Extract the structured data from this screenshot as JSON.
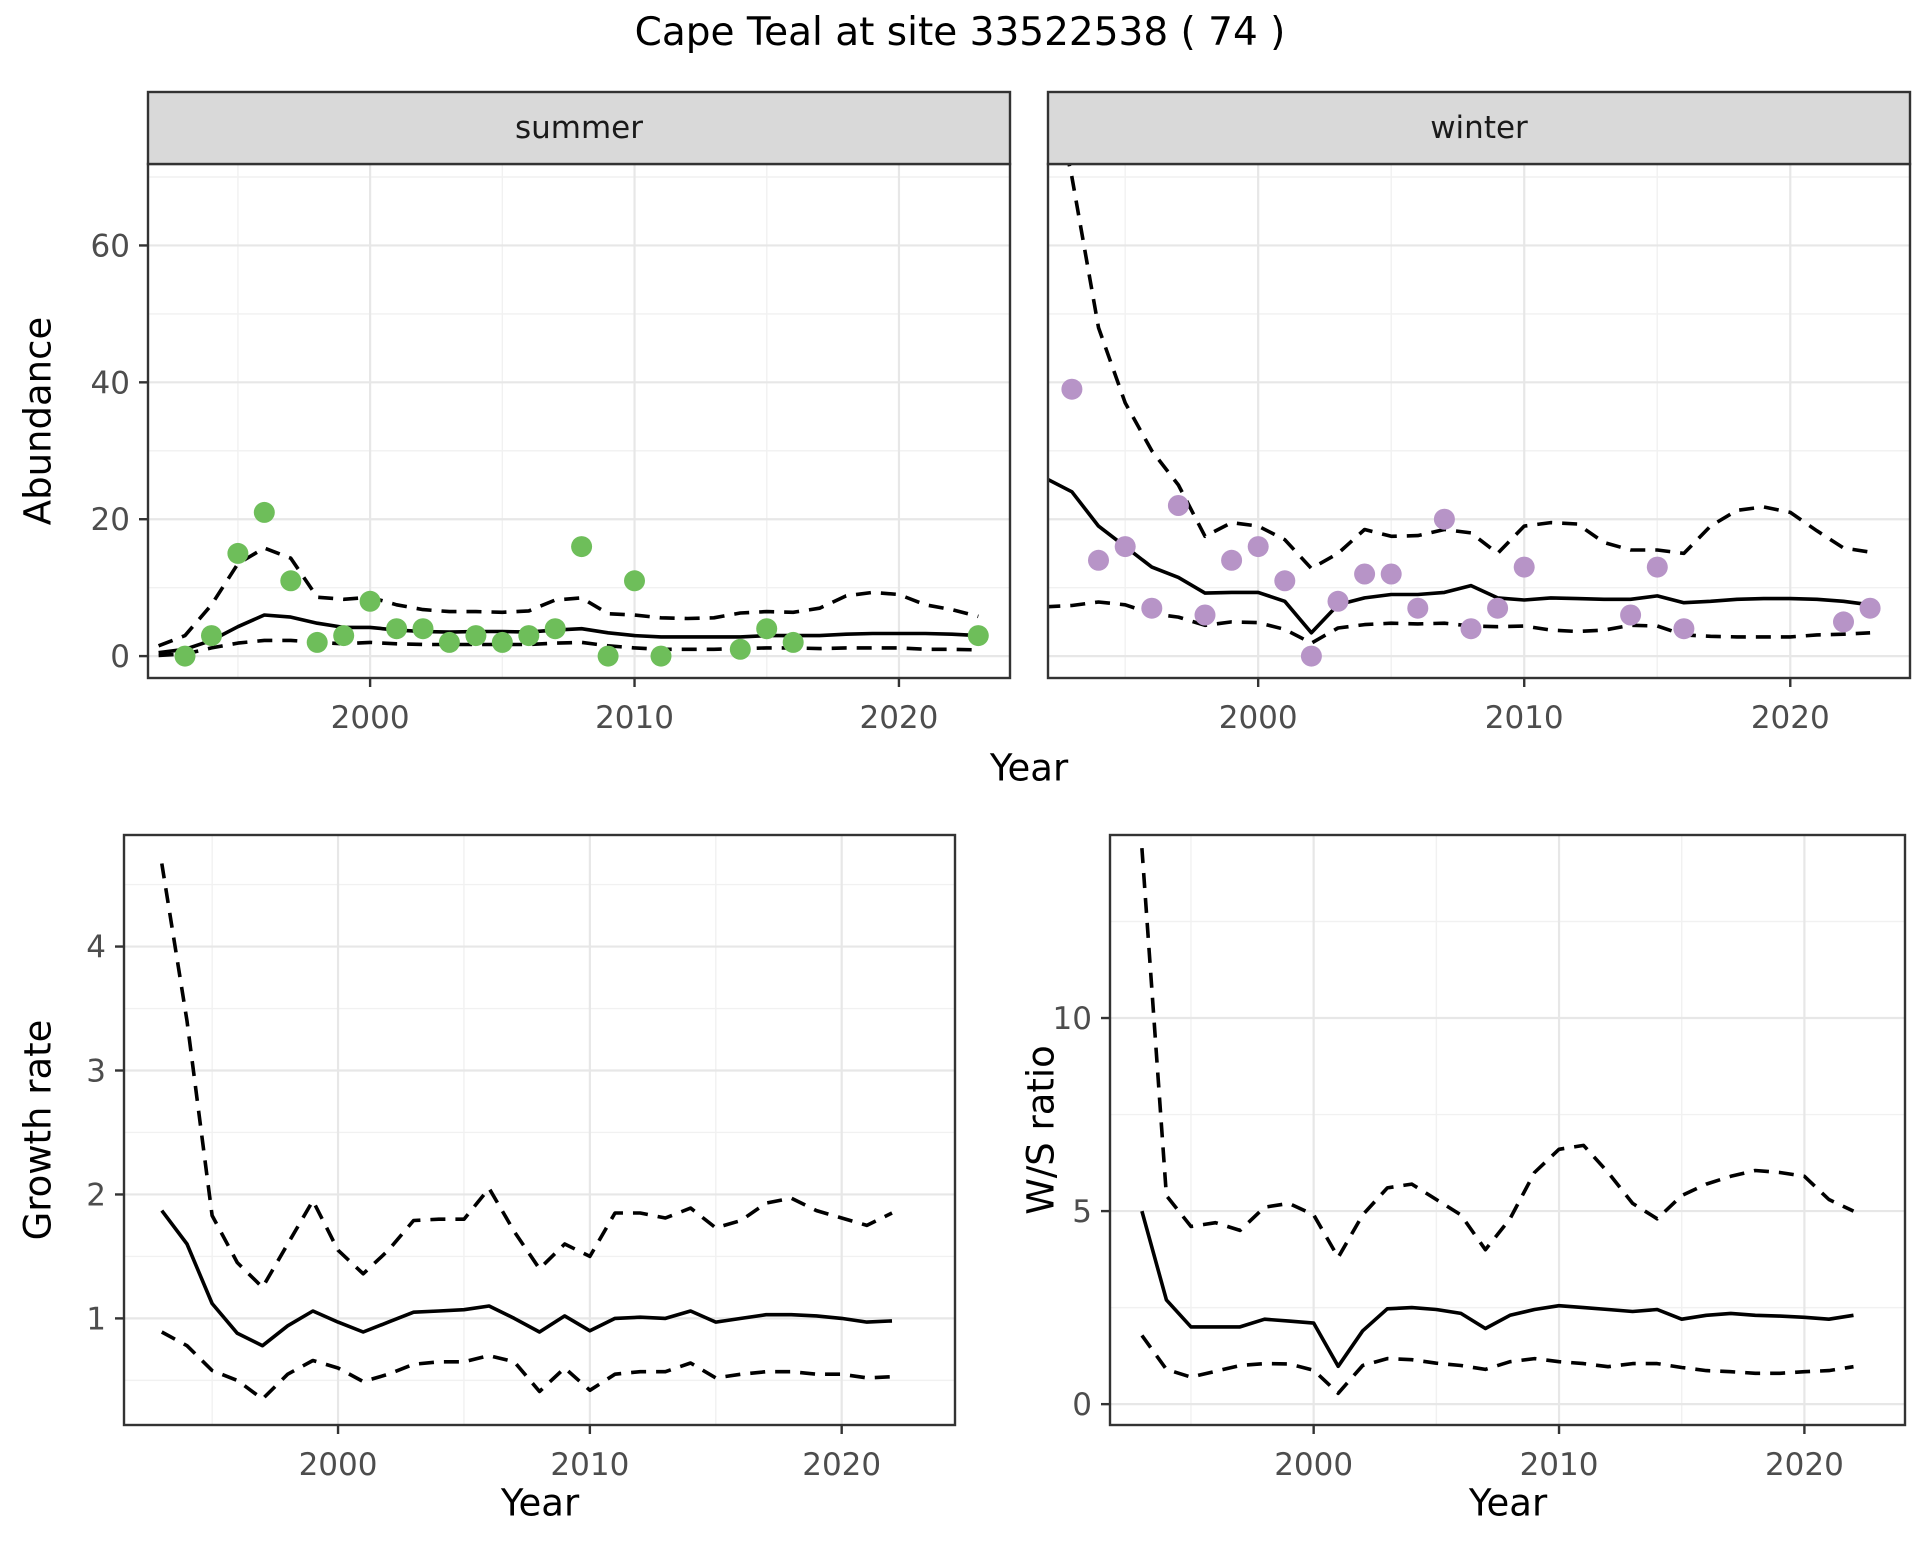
{
  "title": "Cape Teal at site 33522538 ( 74 )",
  "colors": {
    "summer_points": "#6ebe5a",
    "winter_points": "#b794c7",
    "line": "#000000",
    "grid_major": "#e7e7e7",
    "grid_minor": "#f1f1f1",
    "panel_border": "#333333",
    "strip_bg": "#d9d9d9",
    "tick_text": "#4d4d4d"
  },
  "axis_titles": {
    "abundance": "Abundance",
    "year_top": "Year",
    "growth_rate": "Growth rate",
    "year_bottom_left": "Year",
    "ws_ratio": "W/S ratio",
    "year_bottom_right": "Year"
  },
  "chart_data": [
    {
      "id": "abundance-summer",
      "type": "line",
      "facet_label": "summer",
      "xlabel": "Year",
      "ylabel": "Abundance",
      "xlim": [
        1991.6,
        2024.2
      ],
      "ylim": [
        -3.2,
        71.9
      ],
      "x_major": [
        2000,
        2010,
        2020
      ],
      "x_minor": [
        1995,
        2005,
        2015
      ],
      "y_major": [
        0,
        20,
        40,
        60
      ],
      "y_minor": [
        10,
        30,
        50,
        70
      ],
      "years": [
        1992,
        1993,
        1994,
        1995,
        1996,
        1997,
        1998,
        1999,
        2000,
        2001,
        2002,
        2003,
        2004,
        2005,
        2006,
        2007,
        2008,
        2009,
        2010,
        2011,
        2012,
        2013,
        2014,
        2015,
        2016,
        2017,
        2018,
        2019,
        2020,
        2021,
        2022,
        2023
      ],
      "series": [
        {
          "name": "fit",
          "dashed": false,
          "values": [
            0.5,
            1.0,
            2.3,
            4.3,
            6.0,
            5.7,
            4.8,
            4.2,
            4.2,
            3.8,
            3.6,
            3.5,
            3.6,
            3.6,
            3.5,
            3.8,
            4.0,
            3.4,
            3.0,
            2.8,
            2.8,
            2.8,
            2.8,
            3.0,
            3.0,
            3.0,
            3.2,
            3.3,
            3.3,
            3.3,
            3.2,
            3.0
          ]
        },
        {
          "name": "upper_ci",
          "dashed": true,
          "values": [
            1.5,
            3.0,
            7.5,
            13.5,
            15.8,
            14.3,
            8.6,
            8.3,
            8.6,
            7.5,
            6.8,
            6.5,
            6.5,
            6.4,
            6.6,
            8.2,
            8.5,
            6.2,
            6.0,
            5.6,
            5.5,
            5.6,
            6.3,
            6.5,
            6.4,
            7.0,
            8.8,
            9.3,
            9.0,
            7.5,
            6.8,
            5.8
          ]
        },
        {
          "name": "lower_ci",
          "dashed": true,
          "values": [
            0.1,
            0.3,
            1.2,
            1.9,
            2.3,
            2.3,
            2.0,
            1.8,
            2.0,
            1.8,
            1.7,
            1.7,
            1.7,
            1.7,
            1.7,
            1.9,
            2.0,
            1.5,
            1.2,
            1.0,
            1.0,
            1.0,
            1.1,
            1.2,
            1.2,
            1.1,
            1.2,
            1.2,
            1.2,
            1.0,
            1.0,
            0.9
          ]
        }
      ],
      "points": {
        "color_key": "summer_points",
        "data": [
          [
            1993,
            0
          ],
          [
            1994,
            3
          ],
          [
            1995,
            15
          ],
          [
            1996,
            21
          ],
          [
            1997,
            11
          ],
          [
            1998,
            2
          ],
          [
            1999,
            3
          ],
          [
            2000,
            8
          ],
          [
            2001,
            4
          ],
          [
            2002,
            4
          ],
          [
            2003,
            2
          ],
          [
            2004,
            3
          ],
          [
            2005,
            2
          ],
          [
            2006,
            3
          ],
          [
            2007,
            4
          ],
          [
            2008,
            16
          ],
          [
            2009,
            0
          ],
          [
            2010,
            11
          ],
          [
            2011,
            0
          ],
          [
            2014,
            1
          ],
          [
            2015,
            4
          ],
          [
            2016,
            2
          ],
          [
            2023,
            3
          ]
        ]
      }
    },
    {
      "id": "abundance-winter",
      "type": "line",
      "facet_label": "winter",
      "xlabel": "Year",
      "ylabel": "Abundance",
      "xlim": [
        1992.1,
        2024.5
      ],
      "ylim": [
        -3.2,
        71.9
      ],
      "x_major": [
        2000,
        2010,
        2020
      ],
      "x_minor": [
        1995,
        2005,
        2015
      ],
      "y_major": [
        0,
        20,
        40,
        60
      ],
      "y_minor": [
        10,
        30,
        50,
        70
      ],
      "years": [
        1992,
        1993,
        1994,
        1995,
        1996,
        1997,
        1998,
        1999,
        2000,
        2001,
        2002,
        2003,
        2004,
        2005,
        2006,
        2007,
        2008,
        2009,
        2010,
        2011,
        2012,
        2013,
        2014,
        2015,
        2016,
        2017,
        2018,
        2019,
        2020,
        2021,
        2022,
        2023
      ],
      "series": [
        {
          "name": "fit",
          "dashed": false,
          "values": [
            26,
            24,
            19,
            16,
            13,
            11.5,
            9.2,
            9.3,
            9.3,
            8.0,
            3.4,
            7.5,
            8.5,
            9.0,
            9.0,
            9.3,
            10.3,
            8.5,
            8.2,
            8.5,
            8.4,
            8.3,
            8.3,
            8.8,
            7.8,
            8.0,
            8.3,
            8.4,
            8.4,
            8.3,
            8.0,
            7.5
          ]
        },
        {
          "name": "upper_ci",
          "dashed": true,
          "values": [
            88,
            70,
            48,
            37,
            30,
            25,
            17.5,
            19.5,
            19,
            17,
            12.8,
            15,
            18.5,
            17.5,
            17.6,
            18.5,
            18,
            15,
            19,
            19.5,
            19.3,
            16.6,
            15.5,
            15.5,
            15,
            19,
            21.3,
            21.8,
            21,
            18.3,
            15.8,
            15.2
          ]
        },
        {
          "name": "lower_ci",
          "dashed": true,
          "values": [
            7.2,
            7.4,
            7.9,
            7.5,
            6.2,
            5.7,
            4.5,
            5.0,
            4.9,
            3.9,
            1.9,
            4.1,
            4.6,
            4.8,
            4.7,
            4.8,
            4.4,
            4.3,
            4.4,
            3.8,
            3.6,
            3.8,
            4.5,
            4.4,
            3.1,
            2.9,
            2.8,
            2.8,
            2.8,
            3.1,
            3.2,
            3.4
          ]
        }
      ],
      "points": {
        "color_key": "winter_points",
        "data": [
          [
            1993,
            39
          ],
          [
            1994,
            14
          ],
          [
            1995,
            16
          ],
          [
            1996,
            7
          ],
          [
            1997,
            22
          ],
          [
            1998,
            6
          ],
          [
            1999,
            14
          ],
          [
            2000,
            16
          ],
          [
            2001,
            11
          ],
          [
            2002,
            0
          ],
          [
            2003,
            8
          ],
          [
            2004,
            12
          ],
          [
            2005,
            12
          ],
          [
            2006,
            7
          ],
          [
            2007,
            20
          ],
          [
            2008,
            4
          ],
          [
            2009,
            7
          ],
          [
            2010,
            13
          ],
          [
            2014,
            6
          ],
          [
            2015,
            13
          ],
          [
            2016,
            4
          ],
          [
            2022,
            5
          ],
          [
            2023,
            7
          ]
        ]
      }
    },
    {
      "id": "growth-rate",
      "type": "line",
      "facet_label": "",
      "xlabel": "Year",
      "ylabel": "Growth rate",
      "xlim": [
        1991.5,
        2024.5
      ],
      "ylim": [
        0.14,
        4.9
      ],
      "x_major": [
        2000,
        2010,
        2020
      ],
      "x_minor": [
        1995,
        2005,
        2015
      ],
      "y_major": [
        1,
        2,
        3,
        4
      ],
      "y_minor": [
        0.5,
        1.5,
        2.5,
        3.5,
        4.5
      ],
      "years": [
        1993,
        1994,
        1995,
        1996,
        1997,
        1998,
        1999,
        2000,
        2001,
        2002,
        2003,
        2004,
        2005,
        2006,
        2007,
        2008,
        2009,
        2010,
        2011,
        2012,
        2013,
        2014,
        2015,
        2016,
        2017,
        2018,
        2019,
        2020,
        2021,
        2022
      ],
      "series": [
        {
          "name": "fit",
          "dashed": false,
          "values": [
            1.87,
            1.6,
            1.12,
            0.88,
            0.78,
            0.94,
            1.06,
            0.97,
            0.89,
            0.97,
            1.05,
            1.06,
            1.07,
            1.1,
            1.0,
            0.89,
            1.02,
            0.9,
            1.0,
            1.01,
            1.0,
            1.06,
            0.97,
            1.0,
            1.03,
            1.03,
            1.02,
            1.0,
            0.97,
            0.98
          ]
        },
        {
          "name": "upper_ci",
          "dashed": true,
          "values": [
            4.67,
            3.4,
            1.83,
            1.45,
            1.25,
            1.6,
            1.95,
            1.55,
            1.36,
            1.55,
            1.79,
            1.8,
            1.8,
            2.05,
            1.7,
            1.4,
            1.6,
            1.5,
            1.85,
            1.85,
            1.81,
            1.89,
            1.73,
            1.79,
            1.93,
            1.97,
            1.87,
            1.81,
            1.75,
            1.85
          ]
        },
        {
          "name": "lower_ci",
          "dashed": true,
          "values": [
            0.89,
            0.78,
            0.58,
            0.5,
            0.35,
            0.55,
            0.66,
            0.6,
            0.49,
            0.55,
            0.63,
            0.65,
            0.65,
            0.7,
            0.65,
            0.41,
            0.6,
            0.42,
            0.55,
            0.57,
            0.57,
            0.64,
            0.52,
            0.55,
            0.57,
            0.57,
            0.55,
            0.55,
            0.52,
            0.53
          ]
        }
      ]
    },
    {
      "id": "ws-ratio",
      "type": "line",
      "facet_label": "",
      "xlabel": "Year",
      "ylabel": "W/S ratio",
      "xlim": [
        1991.7,
        2024.1
      ],
      "ylim": [
        -0.54,
        14.74
      ],
      "x_major": [
        2000,
        2010,
        2020
      ],
      "x_minor": [
        1995,
        2005,
        2015
      ],
      "y_major": [
        0,
        5,
        10
      ],
      "y_minor": [
        2.5,
        7.5,
        12.5
      ],
      "years": [
        1993,
        1994,
        1995,
        1996,
        1997,
        1998,
        1999,
        2000,
        2001,
        2002,
        2003,
        2004,
        2005,
        2006,
        2007,
        2008,
        2009,
        2010,
        2011,
        2012,
        2013,
        2014,
        2015,
        2016,
        2017,
        2018,
        2019,
        2020,
        2021,
        2022
      ],
      "series": [
        {
          "name": "fit",
          "dashed": false,
          "values": [
            5.0,
            2.7,
            2.0,
            2.0,
            2.0,
            2.2,
            2.15,
            2.1,
            0.98,
            1.9,
            2.47,
            2.5,
            2.45,
            2.35,
            1.96,
            2.3,
            2.45,
            2.55,
            2.5,
            2.45,
            2.4,
            2.45,
            2.2,
            2.3,
            2.35,
            2.3,
            2.28,
            2.25,
            2.2,
            2.3
          ]
        },
        {
          "name": "upper_ci",
          "dashed": true,
          "values": [
            14.4,
            5.4,
            4.6,
            4.7,
            4.5,
            5.1,
            5.2,
            4.9,
            3.8,
            4.9,
            5.6,
            5.7,
            5.3,
            4.9,
            4.0,
            4.8,
            6.0,
            6.6,
            6.7,
            6.0,
            5.2,
            4.8,
            5.4,
            5.7,
            5.9,
            6.05,
            6.0,
            5.9,
            5.3,
            5.0
          ]
        },
        {
          "name": "lower_ci",
          "dashed": true,
          "values": [
            1.78,
            0.9,
            0.7,
            0.85,
            1.0,
            1.05,
            1.04,
            0.88,
            0.28,
            1.0,
            1.18,
            1.15,
            1.06,
            1.0,
            0.9,
            1.1,
            1.18,
            1.1,
            1.05,
            0.97,
            1.05,
            1.05,
            0.95,
            0.87,
            0.84,
            0.8,
            0.8,
            0.84,
            0.87,
            0.97
          ]
        }
      ]
    }
  ]
}
